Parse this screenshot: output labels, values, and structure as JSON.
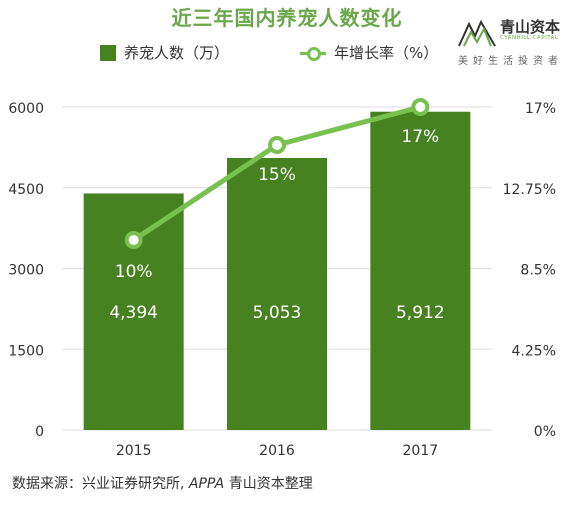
{
  "chart_data": {
    "type": "bar",
    "title": "近三年国内养宠人数变化",
    "categories": [
      "2015",
      "2016",
      "2017"
    ],
    "series": [
      {
        "name": "养宠人数（万）",
        "type": "bar",
        "axis": "left",
        "values": [
          4394,
          5053,
          5912
        ],
        "labels": [
          "4,394",
          "5,053",
          "5,912"
        ],
        "color": "#46821f"
      },
      {
        "name": "年增长率（%）",
        "type": "line",
        "axis": "right",
        "values": [
          10,
          15,
          17
        ],
        "labels": [
          "10%",
          "15%",
          "17%"
        ],
        "color": "#78c04f"
      }
    ],
    "left_axis": {
      "ticks": [
        "0",
        "1500",
        "3000",
        "4500",
        "6000"
      ],
      "ylim": [
        0,
        6000
      ]
    },
    "right_axis": {
      "ticks": [
        "0%",
        "4.25%",
        "8.5%",
        "12.75%",
        "17%"
      ],
      "ylim": [
        0,
        17
      ]
    },
    "grid": true,
    "legend_position": "top"
  },
  "logo": {
    "name": "青山资本",
    "subtitle": "CYANHILL CAPITAL",
    "tagline": "美好生活投资者"
  },
  "source": {
    "prefix": "数据来源：兴业证券研究所, ",
    "italic": "APPA",
    "suffix": " 青山资本整理"
  },
  "colors": {
    "bar": "#46821f",
    "line": "#78c04f",
    "grid": "#dddddd",
    "title": "#6aa64a"
  }
}
